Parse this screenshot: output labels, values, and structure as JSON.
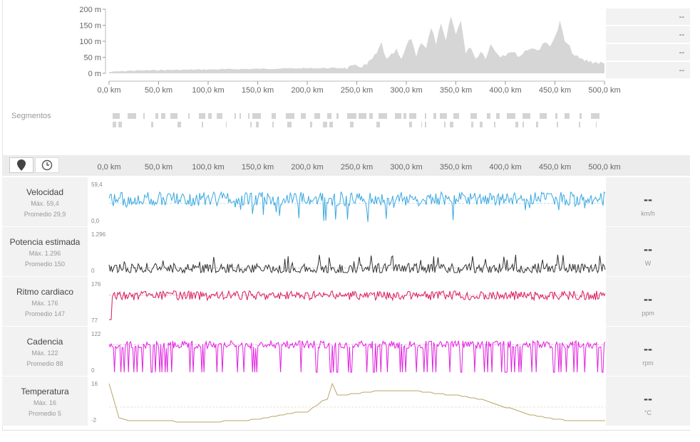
{
  "chart_data": [
    {
      "type": "area",
      "id": "elevation",
      "title": "",
      "xlabel": "",
      "ylabel": "",
      "xlim": [
        0,
        500
      ],
      "ylim": [
        0,
        200
      ],
      "x_ticks": [
        "0,0 km",
        "50,0 km",
        "100,0 km",
        "150,0 km",
        "200,0 km",
        "250,0 km",
        "300,0 km",
        "350,0 km",
        "400,0 km",
        "450,0 km",
        "500,0 km"
      ],
      "y_ticks": [
        "200 m",
        "150 m",
        "100 m",
        "50 m",
        "0 m"
      ],
      "color": "#d6d6d6",
      "x": [
        0,
        20,
        50,
        100,
        150,
        200,
        240,
        260,
        270,
        275,
        280,
        285,
        290,
        295,
        300,
        305,
        310,
        315,
        320,
        325,
        330,
        335,
        340,
        345,
        350,
        355,
        360,
        365,
        370,
        375,
        380,
        385,
        390,
        395,
        400,
        405,
        410,
        415,
        420,
        425,
        430,
        435,
        440,
        445,
        450,
        455,
        460,
        465,
        470,
        475,
        480,
        490,
        500
      ],
      "y": [
        4,
        8,
        10,
        12,
        14,
        16,
        17,
        26,
        60,
        95,
        40,
        55,
        72,
        40,
        85,
        110,
        55,
        100,
        80,
        140,
        95,
        150,
        100,
        180,
        120,
        170,
        60,
        85,
        45,
        70,
        50,
        90,
        70,
        55,
        60,
        70,
        60,
        55,
        70,
        80,
        75,
        78,
        95,
        90,
        110,
        160,
        100,
        80,
        55,
        45,
        40,
        35,
        30
      ]
    },
    {
      "type": "line",
      "id": "velocidad",
      "series": [
        {
          "name": "Velocidad",
          "color": "#3ba8e0",
          "min": 0,
          "max": 59.4,
          "mean": 29.9,
          "baseline_rel": 0.62,
          "amp": 0.18
        }
      ]
    },
    {
      "type": "line",
      "id": "potencia",
      "series": [
        {
          "name": "Potencia estimada",
          "color": "#333333",
          "min": 0,
          "max": 1296,
          "mean": 150,
          "baseline_rel": 0.1,
          "amp": 0.14
        }
      ]
    },
    {
      "type": "line",
      "id": "ritmo",
      "series": [
        {
          "name": "Ritmo cardiaco",
          "color": "#d81b5a",
          "min": 77,
          "max": 176,
          "mean": 147,
          "baseline_rel": 0.7,
          "amp": 0.12
        }
      ]
    },
    {
      "type": "line",
      "id": "cadencia",
      "series": [
        {
          "name": "Cadencia",
          "color": "#e020e0",
          "min": 0,
          "max": 122,
          "mean": 88,
          "baseline_rel": 0.72,
          "amp": 0.1
        }
      ]
    },
    {
      "type": "line",
      "id": "temperatura",
      "series": [
        {
          "name": "Temperatura",
          "color": "#b8a46a",
          "min": -2,
          "max": 16,
          "mean": 5
        }
      ],
      "x": [
        0,
        10,
        20,
        40,
        60,
        80,
        100,
        120,
        140,
        160,
        180,
        200,
        210,
        215,
        220,
        225,
        230,
        240,
        260,
        280,
        300,
        320,
        340,
        360,
        380,
        400,
        420,
        440,
        460,
        480,
        500
      ],
      "y": [
        16,
        0,
        -1,
        -1.5,
        -1.5,
        -2,
        -2,
        -1.5,
        -1,
        0,
        2,
        3,
        6,
        8,
        9,
        16,
        11,
        11,
        12,
        13,
        13,
        12,
        11,
        10,
        8,
        5,
        2,
        0,
        -1,
        -1.5,
        -1.5
      ]
    }
  ],
  "elevation_side": [
    "--",
    "--",
    "--",
    "--"
  ],
  "segments": {
    "label": "Segmentos"
  },
  "toolbar": {
    "map_icon": "map-pin-icon",
    "clock_icon": "clock-icon"
  },
  "rows": [
    {
      "key": "velocidad",
      "title": "Velocidad",
      "max": "Máx. 59,4",
      "avg": "Promedio 29,9",
      "value": "--",
      "unit": "km/h",
      "top_label": "59,4",
      "bottom_label": "0,0"
    },
    {
      "key": "potencia",
      "title": "Potencia estimada",
      "max": "Máx. 1.296",
      "avg": "Promedio 150",
      "value": "--",
      "unit": "W",
      "top_label": "1.296",
      "bottom_label": "0"
    },
    {
      "key": "ritmo",
      "title": "Ritmo cardiaco",
      "max": "Máx. 176",
      "avg": "Promedio 147",
      "value": "--",
      "unit": "ppm",
      "top_label": "176",
      "bottom_label": "77"
    },
    {
      "key": "cadencia",
      "title": "Cadencia",
      "max": "Máx. 122",
      "avg": "Promedio 88",
      "value": "--",
      "unit": "rpm",
      "top_label": "122",
      "bottom_label": "0"
    },
    {
      "key": "temperatura",
      "title": "Temperatura",
      "max": "Máx. 16",
      "avg": "Promedio 5",
      "value": "--",
      "unit": "°C",
      "top_label": "16",
      "bottom_label": "-2"
    }
  ]
}
